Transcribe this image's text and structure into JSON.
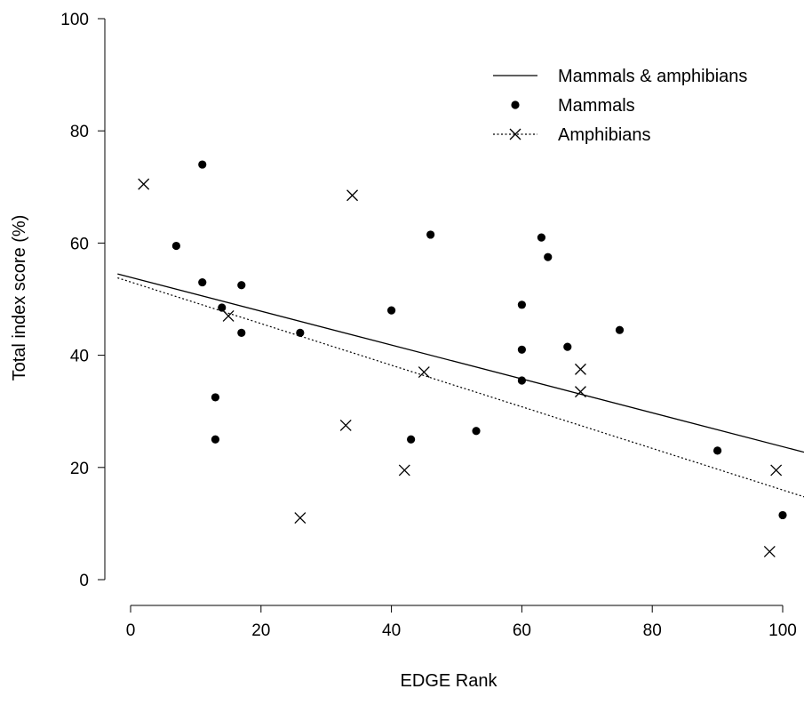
{
  "chart_data": {
    "type": "scatter",
    "xlabel": "EDGE Rank",
    "ylabel": "Total index score (%)",
    "xlim": [
      0,
      100
    ],
    "ylim": [
      0,
      100
    ],
    "x_ticks": [
      "0",
      "20",
      "40",
      "60",
      "80",
      "100"
    ],
    "y_ticks": [
      "0",
      "20",
      "40",
      "60",
      "80",
      "100"
    ],
    "legend_position": "top-right",
    "legend": [
      {
        "label": "Mammals & amphibians",
        "style": "solid-line"
      },
      {
        "label": "Mammals",
        "style": "filled-circle"
      },
      {
        "label": "Amphibians",
        "style": "dotted-line-cross"
      }
    ],
    "series": [
      {
        "name": "Mammals",
        "marker": "circle",
        "points": [
          [
            7,
            59.5
          ],
          [
            11,
            74
          ],
          [
            11,
            53
          ],
          [
            13,
            32.5
          ],
          [
            13,
            25
          ],
          [
            14,
            48.5
          ],
          [
            17,
            52.5
          ],
          [
            17,
            44
          ],
          [
            26,
            44
          ],
          [
            40,
            48
          ],
          [
            43,
            25
          ],
          [
            46,
            61.5
          ],
          [
            53,
            26.5
          ],
          [
            60,
            49
          ],
          [
            60,
            41
          ],
          [
            60,
            35.5
          ],
          [
            63,
            61
          ],
          [
            64,
            57.5
          ],
          [
            67,
            41.5
          ],
          [
            75,
            44.5
          ],
          [
            90,
            23
          ],
          [
            100,
            11.5
          ]
        ]
      },
      {
        "name": "Amphibians",
        "marker": "cross",
        "points": [
          [
            2,
            70.5
          ],
          [
            15,
            47
          ],
          [
            26,
            11
          ],
          [
            33,
            27.5
          ],
          [
            34,
            68.5
          ],
          [
            42,
            19.5
          ],
          [
            45,
            37
          ],
          [
            69,
            37.5
          ],
          [
            69,
            33.5
          ],
          [
            98,
            5
          ],
          [
            99,
            19.5
          ]
        ]
      }
    ],
    "fit_lines": [
      {
        "name": "Mammals & amphibians",
        "style": "solid",
        "x": [
          -2,
          104
        ],
        "y": [
          54.5,
          22.5
        ]
      },
      {
        "name": "Amphibians",
        "style": "dotted",
        "x": [
          -2,
          104
        ],
        "y": [
          53.8,
          14.5
        ]
      }
    ]
  }
}
